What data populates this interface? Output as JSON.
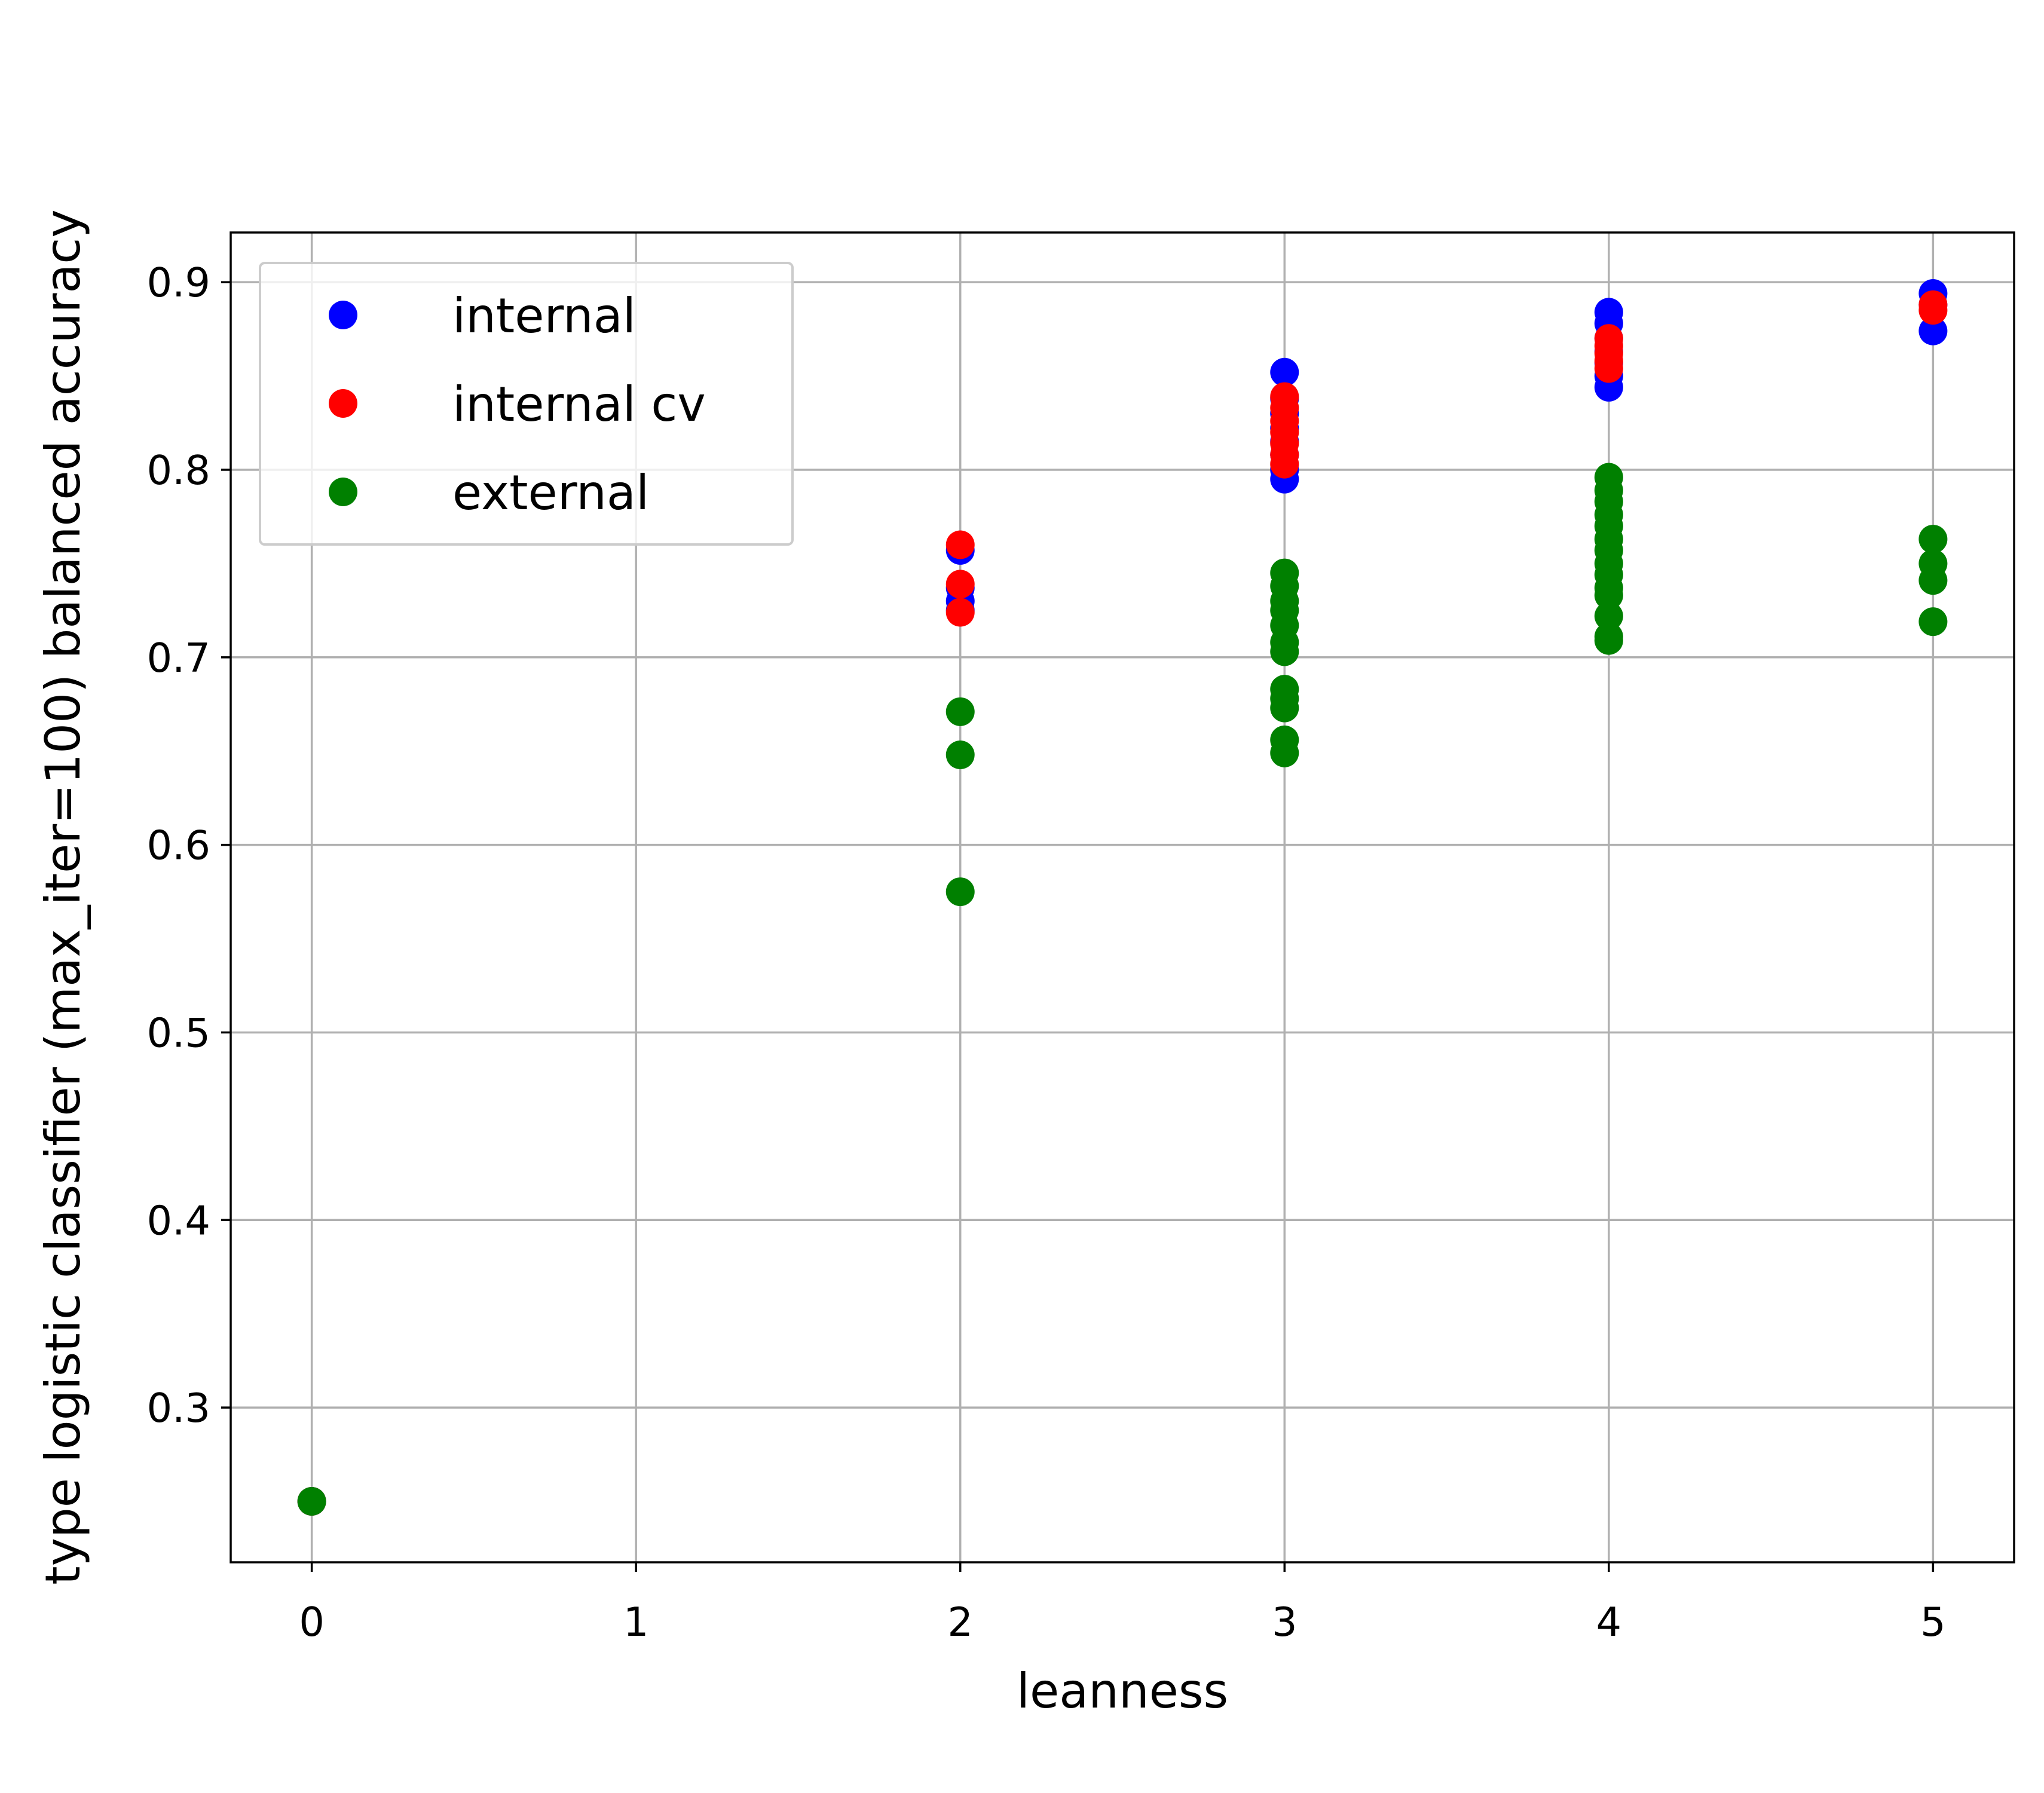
{
  "chart_data": {
    "type": "scatter",
    "title": "",
    "xlabel": "leanness",
    "ylabel": "type logistic classifier (max_iter=100) balanced accuracy",
    "xlim": [
      -0.25,
      5.25
    ],
    "ylim": [
      0.2175,
      0.9265
    ],
    "xticks": [
      0,
      1,
      2,
      3,
      4,
      5
    ],
    "xtick_labels": [
      "0",
      "1",
      "2",
      "3",
      "4",
      "5"
    ],
    "yticks": [
      0.3,
      0.4,
      0.5,
      0.6,
      0.7,
      0.8,
      0.9
    ],
    "ytick_labels": [
      "0.3",
      "0.4",
      "0.5",
      "0.6",
      "0.7",
      "0.8",
      "0.9"
    ],
    "grid": true,
    "legend_position": "upper-left",
    "series": [
      {
        "name": "internal",
        "color": "#0000ff",
        "points": [
          [
            0,
            0.25
          ],
          [
            2,
            0.757
          ],
          [
            2,
            0.737
          ],
          [
            2,
            0.73
          ],
          [
            2,
            0.725
          ],
          [
            3,
            0.852
          ],
          [
            3,
            0.838
          ],
          [
            3,
            0.83
          ],
          [
            3,
            0.822
          ],
          [
            3,
            0.815
          ],
          [
            3,
            0.808
          ],
          [
            3,
            0.8
          ],
          [
            3,
            0.795
          ],
          [
            4,
            0.884
          ],
          [
            4,
            0.878
          ],
          [
            4,
            0.87
          ],
          [
            4,
            0.863
          ],
          [
            4,
            0.857
          ],
          [
            4,
            0.85
          ],
          [
            4,
            0.844
          ],
          [
            5,
            0.894
          ],
          [
            5,
            0.888
          ],
          [
            5,
            0.874
          ]
        ]
      },
      {
        "name": "internal cv",
        "color": "#ff0000",
        "points": [
          [
            0,
            0.25
          ],
          [
            2,
            0.76
          ],
          [
            2,
            0.739
          ],
          [
            2,
            0.724
          ],
          [
            3,
            0.839
          ],
          [
            3,
            0.833
          ],
          [
            3,
            0.826
          ],
          [
            3,
            0.82
          ],
          [
            3,
            0.814
          ],
          [
            3,
            0.808
          ],
          [
            3,
            0.803
          ],
          [
            4,
            0.87
          ],
          [
            4,
            0.866
          ],
          [
            4,
            0.862
          ],
          [
            4,
            0.858
          ],
          [
            4,
            0.854
          ],
          [
            5,
            0.888
          ],
          [
            5,
            0.885
          ]
        ]
      },
      {
        "name": "external",
        "color": "#008000",
        "points": [
          [
            0,
            0.25
          ],
          [
            2,
            0.671
          ],
          [
            2,
            0.648
          ],
          [
            2,
            0.575
          ],
          [
            3,
            0.745
          ],
          [
            3,
            0.738
          ],
          [
            3,
            0.73
          ],
          [
            3,
            0.725
          ],
          [
            3,
            0.717
          ],
          [
            3,
            0.708
          ],
          [
            3,
            0.703
          ],
          [
            3,
            0.683
          ],
          [
            3,
            0.678
          ],
          [
            3,
            0.673
          ],
          [
            3,
            0.656
          ],
          [
            3,
            0.649
          ],
          [
            4,
            0.796
          ],
          [
            4,
            0.789
          ],
          [
            4,
            0.783
          ],
          [
            4,
            0.776
          ],
          [
            4,
            0.77
          ],
          [
            4,
            0.763
          ],
          [
            4,
            0.757
          ],
          [
            4,
            0.75
          ],
          [
            4,
            0.744
          ],
          [
            4,
            0.737
          ],
          [
            4,
            0.733
          ],
          [
            4,
            0.722
          ],
          [
            4,
            0.711
          ],
          [
            4,
            0.709
          ],
          [
            5,
            0.763
          ],
          [
            5,
            0.75
          ],
          [
            5,
            0.741
          ],
          [
            5,
            0.719
          ]
        ]
      }
    ]
  }
}
